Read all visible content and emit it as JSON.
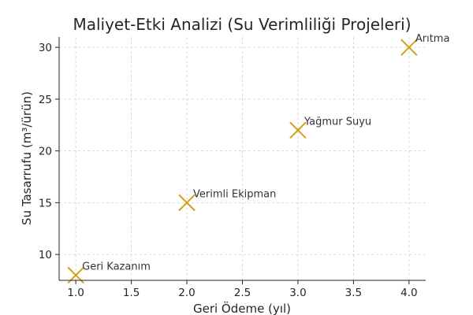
{
  "chart_data": {
    "type": "scatter",
    "title": "Maliyet-Etki Analizi (Su Verimliliği Projeleri)",
    "xlabel": "Geri Ödeme (yıl)",
    "ylabel": "Su Tasarrufu (m³/ürün)",
    "xlim": [
      0.85,
      4.15
    ],
    "ylim": [
      7.5,
      31
    ],
    "xticks": [
      1.0,
      1.5,
      2.0,
      2.5,
      3.0,
      3.5,
      4.0
    ],
    "xtick_labels": [
      "1.0",
      "1.5",
      "2.0",
      "2.5",
      "3.0",
      "3.5",
      "4.0"
    ],
    "yticks": [
      10,
      15,
      20,
      25,
      30
    ],
    "ytick_labels": [
      "10",
      "15",
      "20",
      "25",
      "30"
    ],
    "grid": true,
    "marker": "x",
    "marker_color": "#d4a017",
    "points": [
      {
        "x": 1.0,
        "y": 8,
        "label": "Geri Kazanım"
      },
      {
        "x": 2.0,
        "y": 15,
        "label": "Verimli Ekipman"
      },
      {
        "x": 3.0,
        "y": 22,
        "label": "Yağmur Suyu"
      },
      {
        "x": 4.0,
        "y": 30,
        "label": "Arıtma"
      }
    ]
  }
}
